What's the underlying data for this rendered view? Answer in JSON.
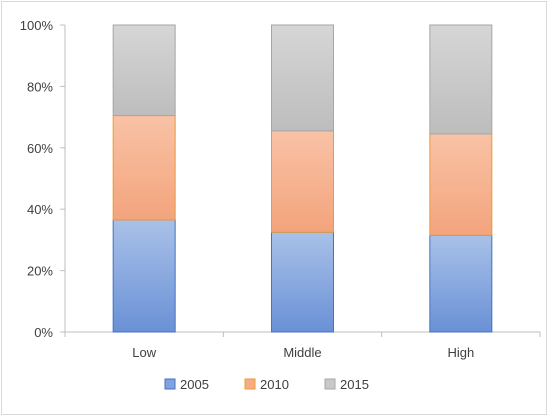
{
  "chart_data": {
    "type": "bar",
    "stacked": true,
    "percent": true,
    "categories": [
      "Low",
      "Middle",
      "High"
    ],
    "series": [
      {
        "name": "2005",
        "values": [
          36.5,
          32.5,
          31.5
        ],
        "color": "#7fa3dc",
        "stroke": "#4472c4"
      },
      {
        "name": "2010",
        "values": [
          34.0,
          33.0,
          33.0
        ],
        "color": "#f6ac86",
        "stroke": "#ed9b2f"
      },
      {
        "name": "2015",
        "values": [
          29.5,
          34.5,
          35.5
        ],
        "color": "#c9c9c9",
        "stroke": "#a6a6a6"
      }
    ],
    "y_ticks": [
      "0%",
      "20%",
      "40%",
      "60%",
      "80%",
      "100%"
    ],
    "ylim": [
      0,
      100
    ],
    "grid": false,
    "legend_position": "bottom"
  }
}
